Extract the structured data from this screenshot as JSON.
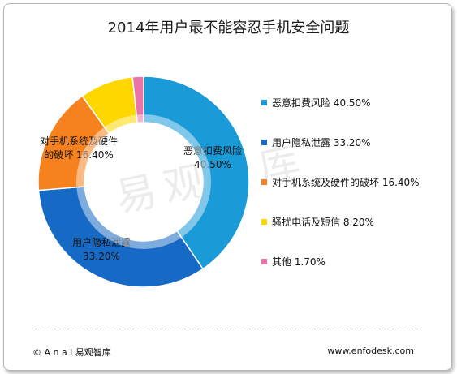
{
  "chart_data": {
    "type": "pie",
    "title": "2014年用户最不能容忍手机安全问题",
    "donut": true,
    "legend_placement": "right",
    "slices": [
      {
        "label": "恶意扣费风险",
        "value": 40.5,
        "display": "40.50%",
        "color": "#1b9ad8",
        "chart_label_lines": [
          "恶意扣费风险",
          "40.50%"
        ]
      },
      {
        "label": "用户隐私泄露",
        "value": 33.2,
        "display": "33.20%",
        "color": "#1669c4",
        "chart_label_lines": [
          "用户隐私泄露",
          "33.20%"
        ]
      },
      {
        "label": "对手机系统及硬件的破坏",
        "value": 16.4,
        "display": "16.40%",
        "color": "#f6821f",
        "chart_label_lines": [
          "对手机系统及硬件",
          "的破坏  16.40%"
        ]
      },
      {
        "label": "骚扰电话及短信",
        "value": 8.2,
        "display": "8.20%",
        "color": "#ffd700",
        "chart_label_lines": []
      },
      {
        "label": "其他",
        "value": 1.7,
        "display": "1.70%",
        "color": "#ea74a8",
        "chart_label_lines": []
      }
    ]
  },
  "watermark": "易观智库",
  "footer": {
    "copyright": "©  A n a l 易观智库",
    "website": "www.enfodesk.com"
  }
}
